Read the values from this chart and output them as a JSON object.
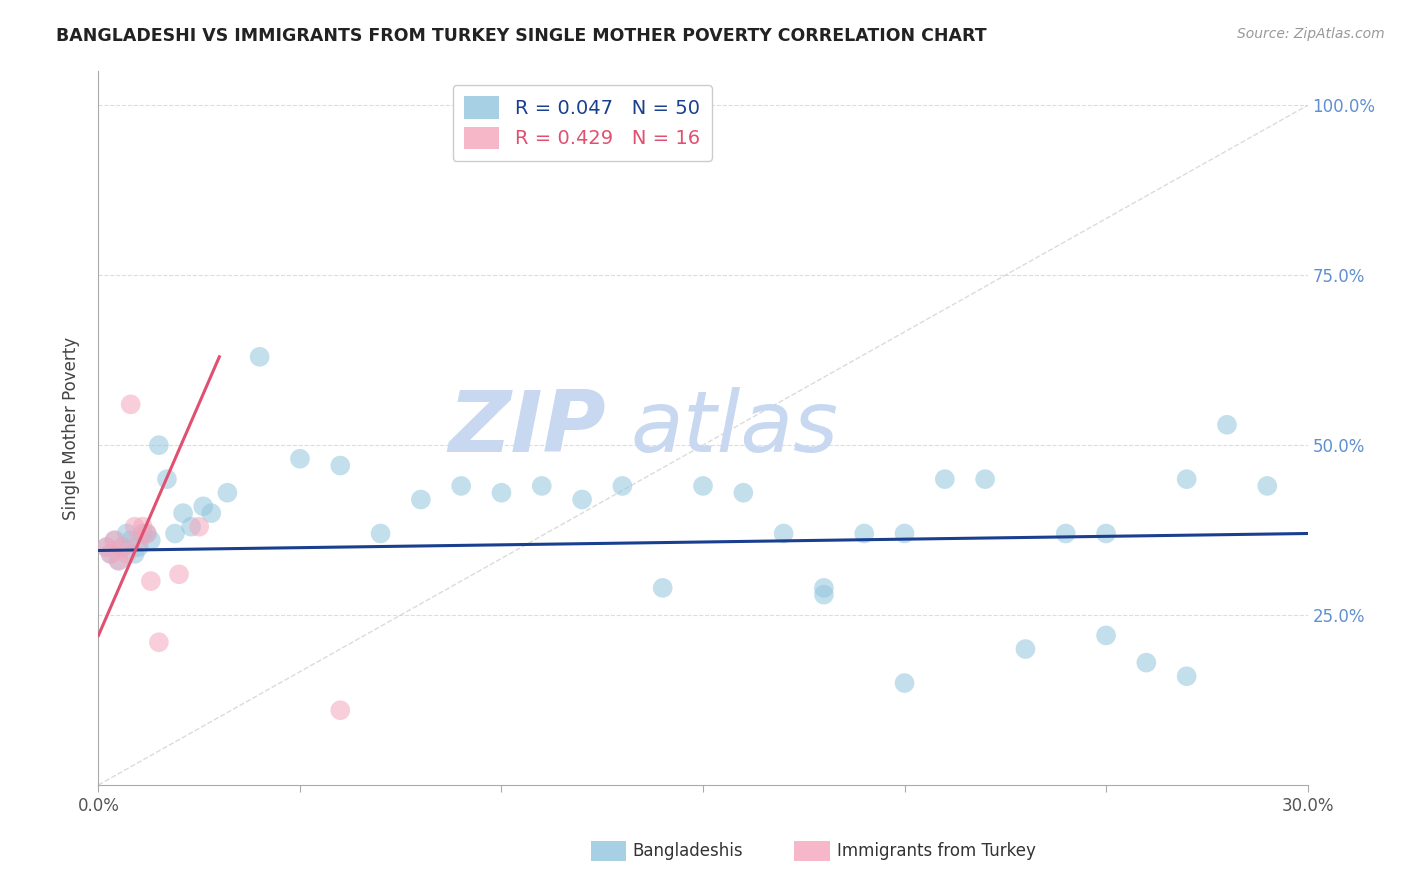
{
  "title": "BANGLADESHI VS IMMIGRANTS FROM TURKEY SINGLE MOTHER POVERTY CORRELATION CHART",
  "source": "Source: ZipAtlas.com",
  "ylabel": "Single Mother Poverty",
  "xlim": [
    0.0,
    0.3
  ],
  "ylim": [
    0.0,
    1.05
  ],
  "watermark_zip": "ZIP",
  "watermark_atlas": "atlas",
  "blue_scatter_x": [
    0.002,
    0.003,
    0.004,
    0.005,
    0.006,
    0.007,
    0.008,
    0.009,
    0.01,
    0.011,
    0.012,
    0.013,
    0.015,
    0.017,
    0.019,
    0.021,
    0.023,
    0.026,
    0.028,
    0.032,
    0.04,
    0.05,
    0.06,
    0.07,
    0.08,
    0.09,
    0.1,
    0.11,
    0.12,
    0.13,
    0.14,
    0.15,
    0.16,
    0.17,
    0.18,
    0.19,
    0.2,
    0.21,
    0.22,
    0.23,
    0.24,
    0.25,
    0.26,
    0.27,
    0.28,
    0.29,
    0.18,
    0.2,
    0.25,
    0.27
  ],
  "blue_scatter_y": [
    0.35,
    0.34,
    0.36,
    0.33,
    0.35,
    0.37,
    0.36,
    0.34,
    0.35,
    0.37,
    0.37,
    0.36,
    0.5,
    0.45,
    0.37,
    0.4,
    0.38,
    0.41,
    0.4,
    0.43,
    0.63,
    0.48,
    0.47,
    0.37,
    0.42,
    0.44,
    0.43,
    0.44,
    0.42,
    0.44,
    0.29,
    0.44,
    0.43,
    0.37,
    0.29,
    0.37,
    0.15,
    0.45,
    0.45,
    0.2,
    0.37,
    0.37,
    0.18,
    0.45,
    0.53,
    0.44,
    0.28,
    0.37,
    0.22,
    0.16
  ],
  "pink_scatter_x": [
    0.002,
    0.003,
    0.004,
    0.005,
    0.006,
    0.007,
    0.008,
    0.009,
    0.01,
    0.011,
    0.012,
    0.013,
    0.015,
    0.02,
    0.025,
    0.06
  ],
  "pink_scatter_y": [
    0.35,
    0.34,
    0.36,
    0.33,
    0.35,
    0.34,
    0.56,
    0.38,
    0.36,
    0.38,
    0.37,
    0.3,
    0.21,
    0.31,
    0.38,
    0.11
  ],
  "blue_line_x": [
    0.0,
    0.3
  ],
  "blue_line_y": [
    0.345,
    0.37
  ],
  "pink_line_x": [
    0.0,
    0.03
  ],
  "pink_line_y": [
    0.22,
    0.63
  ],
  "title_color": "#222222",
  "source_color": "#999999",
  "grid_color": "#dddddd",
  "blue_color": "#92c5de",
  "pink_color": "#f4a6bc",
  "blue_line_color": "#1a3f8f",
  "pink_line_color": "#e05070",
  "watermark_color_zip": "#c8d8f0",
  "watermark_color_atlas": "#c8d8f0",
  "right_tick_color": "#6090d0",
  "legend_blue_text_color": "#1a3f8f",
  "legend_pink_text_color": "#e05070",
  "bottom_legend_blue_color": "#92c5de",
  "bottom_legend_pink_color": "#f4a6bc"
}
